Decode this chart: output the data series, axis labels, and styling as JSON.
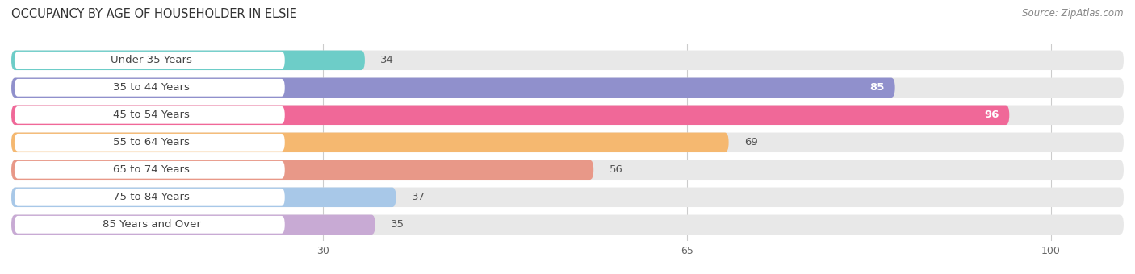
{
  "title": "OCCUPANCY BY AGE OF HOUSEHOLDER IN ELSIE",
  "source": "Source: ZipAtlas.com",
  "categories": [
    "Under 35 Years",
    "35 to 44 Years",
    "45 to 54 Years",
    "55 to 64 Years",
    "65 to 74 Years",
    "75 to 84 Years",
    "85 Years and Over"
  ],
  "values": [
    34,
    85,
    96,
    69,
    56,
    37,
    35
  ],
  "bar_colors": [
    "#6dcdc8",
    "#9090cc",
    "#f06898",
    "#f5b870",
    "#e89888",
    "#a8c8e8",
    "#c8aad4"
  ],
  "xlim_data": 107,
  "x_min": 0,
  "xticks": [
    30,
    65,
    100
  ],
  "title_fontsize": 10.5,
  "source_fontsize": 8.5,
  "label_fontsize": 9.5,
  "value_fontsize": 9.5,
  "bar_height": 0.72,
  "bar_gap": 0.18,
  "figure_bg": "#ffffff",
  "axes_bg": "#ffffff",
  "bg_bar_color": "#e8e8e8",
  "label_bg_color": "#ffffff",
  "grid_color": "#cccccc"
}
